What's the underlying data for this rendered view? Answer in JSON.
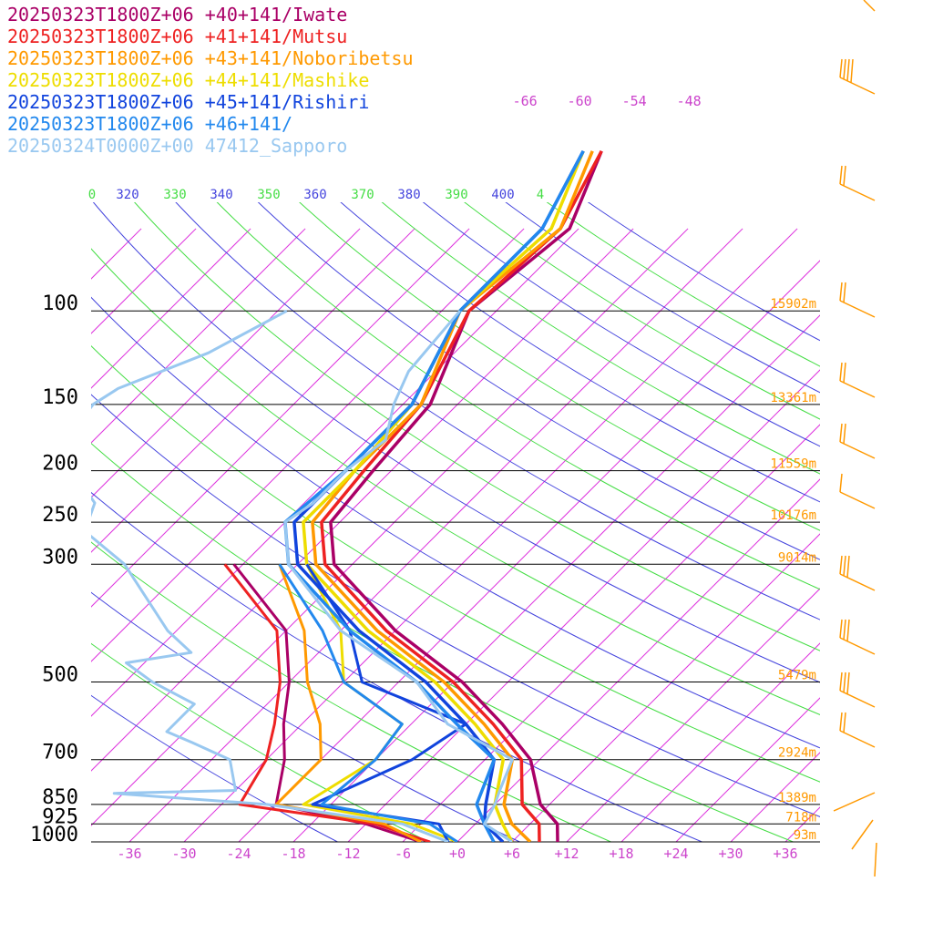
{
  "legend": [
    {
      "label": "20250323T1800Z+06 +40+141/Iwate",
      "color": "#aa0066"
    },
    {
      "label": "20250323T1800Z+06 +41+141/Mutsu",
      "color": "#ee2222"
    },
    {
      "label": "20250323T1800Z+06 +43+141/Noboribetsu",
      "color": "#ff9900"
    },
    {
      "label": "20250323T1800Z+06 +44+141/Mashike",
      "color": "#eedd00"
    },
    {
      "label": "20250323T1800Z+06 +45+141/Rishiri",
      "color": "#1144dd"
    },
    {
      "label": "20250323T1800Z+06 +46+141/",
      "color": "#2288ee"
    },
    {
      "label": "20250324T0000Z+00 47412_Sapporo",
      "color": "#99c8f0"
    }
  ],
  "chart_data": {
    "type": "skew-t",
    "pressure_levels": [
      {
        "p": 100,
        "label": "100",
        "height": "15902m"
      },
      {
        "p": 150,
        "label": "150",
        "height": "13361m"
      },
      {
        "p": 200,
        "label": "200",
        "height": "11559m"
      },
      {
        "p": 250,
        "label": "250",
        "height": "10176m"
      },
      {
        "p": 300,
        "label": "300",
        "height": "9014m"
      },
      {
        "p": 500,
        "label": "500",
        "height": "5479m"
      },
      {
        "p": 700,
        "label": "700",
        "height": "2924m"
      },
      {
        "p": 850,
        "label": "850",
        "height": "1389m"
      },
      {
        "p": 925,
        "label": "925",
        "height": "718m"
      },
      {
        "p": 1000,
        "label": "1000",
        "height": "93m"
      }
    ],
    "temperature_ticks": [
      {
        "t": -36,
        "label": "-36"
      },
      {
        "t": -30,
        "label": "-30"
      },
      {
        "t": -24,
        "label": "-24"
      },
      {
        "t": -18,
        "label": "-18"
      },
      {
        "t": -12,
        "label": "-12"
      },
      {
        "t": -6,
        "label": "-6"
      },
      {
        "t": 0,
        "label": "+0"
      },
      {
        "t": 6,
        "label": "+6"
      },
      {
        "t": 12,
        "label": "+12"
      },
      {
        "t": 18,
        "label": "+18"
      },
      {
        "t": 24,
        "label": "+24"
      },
      {
        "t": 30,
        "label": "+30"
      },
      {
        "t": 36,
        "label": "+36"
      }
    ],
    "upper_temperature_labels": [
      {
        "t": -66,
        "label": "-66"
      },
      {
        "t": -60,
        "label": "-60"
      },
      {
        "t": -54,
        "label": "-54"
      },
      {
        "t": -48,
        "label": "-48"
      }
    ],
    "theta_labels": [
      {
        "theta": 320,
        "label": "320"
      },
      {
        "theta": 330,
        "label": "330"
      },
      {
        "theta": 340,
        "label": "340"
      },
      {
        "theta": 350,
        "label": "350"
      },
      {
        "theta": 360,
        "label": "360"
      },
      {
        "theta": 370,
        "label": "370"
      },
      {
        "theta": 380,
        "label": "380"
      },
      {
        "theta": 390,
        "label": "390"
      },
      {
        "theta": 400,
        "label": "400"
      }
    ],
    "theta_clipped_labels": [
      {
        "theta": 310,
        "label": "0"
      },
      {
        "theta": 410,
        "label": "4"
      }
    ],
    "series": [
      {
        "name": "20250323T1800Z+06 +40+141/Iwate",
        "color": "#aa0066",
        "temp": [
          [
            50,
            -60
          ],
          [
            70,
            -55
          ],
          [
            100,
            -57
          ],
          [
            150,
            -51
          ],
          [
            200,
            -50
          ],
          [
            250,
            -49
          ],
          [
            300,
            -44
          ],
          [
            400,
            -30
          ],
          [
            500,
            -17
          ],
          [
            600,
            -8
          ],
          [
            700,
            -1
          ],
          [
            850,
            5
          ],
          [
            925,
            9
          ],
          [
            1000,
            11
          ]
        ],
        "dew": [
          [
            300,
            -55
          ],
          [
            400,
            -42
          ],
          [
            500,
            -36
          ],
          [
            600,
            -32
          ],
          [
            700,
            -28
          ],
          [
            850,
            -24
          ],
          [
            925,
            -12
          ],
          [
            1000,
            -4
          ]
        ]
      },
      {
        "name": "20250323T1800Z+06 +41+141/Mutsu",
        "color": "#ee2222",
        "temp": [
          [
            50,
            -60
          ],
          [
            70,
            -56
          ],
          [
            100,
            -57
          ],
          [
            150,
            -52
          ],
          [
            200,
            -51
          ],
          [
            250,
            -50
          ],
          [
            300,
            -45
          ],
          [
            400,
            -31
          ],
          [
            500,
            -18
          ],
          [
            600,
            -9
          ],
          [
            700,
            -2
          ],
          [
            850,
            3
          ],
          [
            925,
            7
          ],
          [
            1000,
            9
          ]
        ],
        "dew": [
          [
            300,
            -56
          ],
          [
            400,
            -43
          ],
          [
            500,
            -37
          ],
          [
            600,
            -33
          ],
          [
            700,
            -30
          ],
          [
            850,
            -28
          ],
          [
            925,
            -11
          ],
          [
            1000,
            -3
          ]
        ]
      },
      {
        "name": "20250323T1800Z+06 +43+141/Noboribetsu",
        "color": "#ff9900",
        "temp": [
          [
            50,
            -61
          ],
          [
            70,
            -56
          ],
          [
            100,
            -58
          ],
          [
            150,
            -52
          ],
          [
            200,
            -52
          ],
          [
            250,
            -51
          ],
          [
            300,
            -46
          ],
          [
            400,
            -32
          ],
          [
            500,
            -19
          ],
          [
            600,
            -10
          ],
          [
            700,
            -3
          ],
          [
            850,
            1
          ],
          [
            925,
            4
          ],
          [
            1000,
            8
          ]
        ],
        "dew": [
          [
            300,
            -50
          ],
          [
            400,
            -40
          ],
          [
            500,
            -34
          ],
          [
            600,
            -28
          ],
          [
            700,
            -24
          ],
          [
            850,
            -24
          ],
          [
            925,
            -10
          ],
          [
            1000,
            -4
          ]
        ]
      },
      {
        "name": "20250323T1800Z+06 +44+141/Mashike",
        "color": "#eedd00",
        "temp": [
          [
            50,
            -62
          ],
          [
            70,
            -57
          ],
          [
            100,
            -58
          ],
          [
            150,
            -53
          ],
          [
            200,
            -52
          ],
          [
            250,
            -52
          ],
          [
            300,
            -47
          ],
          [
            400,
            -33
          ],
          [
            500,
            -20
          ],
          [
            600,
            -11
          ],
          [
            700,
            -4
          ],
          [
            850,
            0
          ],
          [
            925,
            3
          ],
          [
            1000,
            6
          ]
        ],
        "dew": [
          [
            300,
            -47
          ],
          [
            400,
            -36
          ],
          [
            500,
            -30
          ],
          [
            600,
            -19
          ],
          [
            700,
            -18
          ],
          [
            850,
            -21
          ],
          [
            925,
            -7
          ],
          [
            1000,
            0
          ]
        ]
      },
      {
        "name": "20250323T1800Z+06 +45+141/Rishiri",
        "color": "#1144dd",
        "temp": [
          [
            50,
            -62
          ],
          [
            70,
            -58
          ],
          [
            100,
            -58
          ],
          [
            150,
            -53
          ],
          [
            200,
            -53
          ],
          [
            250,
            -53
          ],
          [
            300,
            -48
          ],
          [
            400,
            -34
          ],
          [
            500,
            -21
          ],
          [
            600,
            -12
          ],
          [
            700,
            -5
          ],
          [
            850,
            -1
          ],
          [
            925,
            1
          ],
          [
            1000,
            5
          ]
        ],
        "dew": [
          [
            300,
            -47
          ],
          [
            400,
            -35
          ],
          [
            500,
            -28
          ],
          [
            600,
            -12
          ],
          [
            700,
            -14
          ],
          [
            850,
            -20
          ],
          [
            925,
            -4
          ],
          [
            1000,
            -1
          ]
        ]
      },
      {
        "name": "20250323T1800Z+06 +46+141/",
        "color": "#2288ee",
        "temp": [
          [
            50,
            -62
          ],
          [
            70,
            -58
          ],
          [
            100,
            -58
          ],
          [
            150,
            -53
          ],
          [
            200,
            -53
          ],
          [
            250,
            -54
          ],
          [
            300,
            -49
          ],
          [
            400,
            -35
          ],
          [
            500,
            -22
          ],
          [
            600,
            -13
          ],
          [
            700,
            -5
          ],
          [
            850,
            -2
          ],
          [
            925,
            1
          ],
          [
            1000,
            4
          ]
        ],
        "dew": [
          [
            300,
            -50
          ],
          [
            400,
            -38
          ],
          [
            500,
            -30
          ],
          [
            600,
            -19
          ],
          [
            700,
            -18
          ],
          [
            850,
            -19
          ],
          [
            925,
            -5
          ],
          [
            1000,
            0
          ]
        ]
      }
    ],
    "sounding": {
      "name": "20250324T0000Z+00 47412_Sapporo",
      "color": "#99c8f0",
      "temp": [
        [
          100,
          -58
        ],
        [
          130,
          -57
        ],
        [
          150,
          -55
        ],
        [
          175,
          -52
        ],
        [
          200,
          -53
        ],
        [
          230,
          -53
        ],
        [
          250,
          -54
        ],
        [
          300,
          -49
        ],
        [
          400,
          -36
        ],
        [
          500,
          -22
        ],
        [
          600,
          -14
        ],
        [
          700,
          -3
        ],
        [
          800,
          -1
        ],
        [
          850,
          0
        ],
        [
          925,
          1
        ],
        [
          1000,
          6
        ]
      ],
      "dew": [
        [
          100,
          -77
        ],
        [
          120,
          -81
        ],
        [
          140,
          -87
        ],
        [
          150,
          -88
        ],
        [
          175,
          -87
        ],
        [
          200,
          -83
        ],
        [
          230,
          -77
        ],
        [
          260,
          -75
        ],
        [
          300,
          -67
        ],
        [
          400,
          -55
        ],
        [
          440,
          -50
        ],
        [
          460,
          -56
        ],
        [
          500,
          -51
        ],
        [
          550,
          -44
        ],
        [
          620,
          -44
        ],
        [
          650,
          -40
        ],
        [
          700,
          -34
        ],
        [
          800,
          -30
        ],
        [
          810,
          -43
        ],
        [
          850,
          -25
        ],
        [
          925,
          -8
        ],
        [
          1000,
          -1
        ]
      ]
    },
    "axes": {
      "pressure_range": [
        1000,
        100
      ],
      "temperature_range": [
        -36,
        36
      ],
      "pressure_scale": "log",
      "skew": "45°"
    },
    "isotherms": true,
    "dry_adiabats": true,
    "wind_barbs": true
  }
}
